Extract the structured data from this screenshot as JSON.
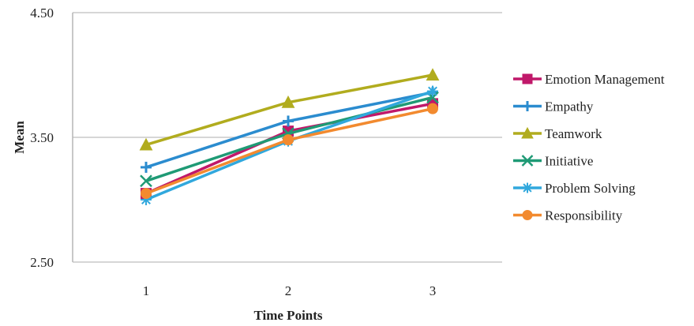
{
  "chart_data": {
    "type": "line",
    "xlabel": "Time Points",
    "ylabel": "Mean",
    "categories": [
      "1",
      "2",
      "3"
    ],
    "ylim": [
      2.5,
      4.5
    ],
    "yticks": [
      "2.50",
      "3.50",
      "4.50"
    ],
    "ytick_values": [
      2.5,
      3.5,
      4.5
    ],
    "grid": "horizontal",
    "legend_position": "right",
    "series": [
      {
        "name": "Emotion Management",
        "values": [
          3.05,
          3.55,
          3.77
        ],
        "color": "#c0186a",
        "marker": "square"
      },
      {
        "name": "Empathy",
        "values": [
          3.26,
          3.63,
          3.86
        ],
        "color": "#2b8ccf",
        "marker": "plus"
      },
      {
        "name": "Teamwork",
        "values": [
          3.44,
          3.78,
          4.0
        ],
        "color": "#b1ac1e",
        "marker": "triangle"
      },
      {
        "name": "Initiative",
        "values": [
          3.15,
          3.53,
          3.82
        ],
        "color": "#1f9a75",
        "marker": "x"
      },
      {
        "name": "Problem Solving",
        "values": [
          3.0,
          3.47,
          3.87
        ],
        "color": "#31a8dd",
        "marker": "star"
      },
      {
        "name": "Responsibility",
        "values": [
          3.05,
          3.48,
          3.73
        ],
        "color": "#f28a2f",
        "marker": "circle"
      }
    ]
  }
}
